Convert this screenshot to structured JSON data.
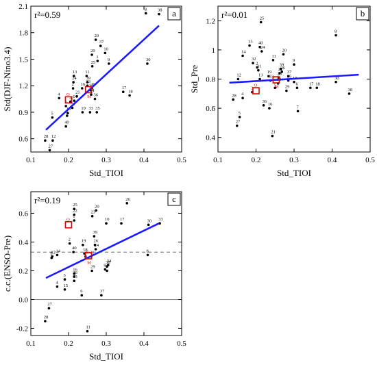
{
  "chart_data": [
    {
      "type": "scatter",
      "panel": "a",
      "r2_text": "r²=0.59",
      "xlabel": "Std_TIOI",
      "ylabel": "Std(DJF-Nino3.4)",
      "xlim": [
        0.1,
        0.5
      ],
      "ylim": [
        0.45,
        2.1
      ],
      "xticks": [
        "0.1",
        "0.2",
        "0.3",
        "0.4",
        "0.5"
      ],
      "yticks": [
        {
          "v": 0.6,
          "label": "0.6"
        },
        {
          "v": 0.9,
          "label": "0.9"
        },
        {
          "v": 1.2,
          "label": "1.2"
        },
        {
          "v": 1.5,
          "label": "1.5"
        },
        {
          "v": 1.8,
          "label": "1.8"
        },
        {
          "v": 2.1,
          "label": "2.1"
        }
      ],
      "fit": {
        "x1": 0.14,
        "y1": 0.7,
        "x2": 0.44,
        "y2": 1.88
      },
      "markers": [
        {
          "label": "O",
          "x": 0.2,
          "y": 1.04
        },
        {
          "label": "M",
          "x": 0.253,
          "y": 1.155
        }
      ],
      "points": [
        {
          "id": "8",
          "x": 0.405,
          "y": 2.02
        },
        {
          "id": "38",
          "x": 0.44,
          "y": 2.01
        },
        {
          "id": "20",
          "x": 0.272,
          "y": 1.72
        },
        {
          "id": "37",
          "x": 0.285,
          "y": 1.65
        },
        {
          "id": "10",
          "x": 0.297,
          "y": 1.57
        },
        {
          "id": "29",
          "x": 0.262,
          "y": 1.55
        },
        {
          "id": "1",
          "x": 0.277,
          "y": 1.48
        },
        {
          "id": "9",
          "x": 0.307,
          "y": 1.45
        },
        {
          "id": "30",
          "x": 0.409,
          "y": 1.45
        },
        {
          "id": "25",
          "x": 0.263,
          "y": 1.42
        },
        {
          "id": "13",
          "x": 0.214,
          "y": 1.31
        },
        {
          "id": "11",
          "x": 0.248,
          "y": 1.31
        },
        {
          "id": "24",
          "x": 0.213,
          "y": 1.24
        },
        {
          "id": "39",
          "x": 0.25,
          "y": 1.24
        },
        {
          "id": "2",
          "x": 0.212,
          "y": 1.17
        },
        {
          "id": "23",
          "x": 0.25,
          "y": 1.2
        },
        {
          "id": "16",
          "x": 0.236,
          "y": 1.17
        },
        {
          "id": "26",
          "x": 0.262,
          "y": 1.17
        },
        {
          "id": "17",
          "x": 0.345,
          "y": 1.13
        },
        {
          "id": "22",
          "x": 0.258,
          "y": 1.15
        },
        {
          "id": "18",
          "x": 0.362,
          "y": 1.09
        },
        {
          "id": "21",
          "x": 0.222,
          "y": 1.08
        },
        {
          "id": "34",
          "x": 0.26,
          "y": 1.1
        },
        {
          "id": "4",
          "x": 0.175,
          "y": 1.06
        },
        {
          "id": "14",
          "x": 0.215,
          "y": 1.03
        },
        {
          "id": "36",
          "x": 0.27,
          "y": 1.05
        },
        {
          "id": "32",
          "x": 0.205,
          "y": 1.02
        },
        {
          "id": "3",
          "x": 0.193,
          "y": 0.97
        },
        {
          "id": "31",
          "x": 0.21,
          "y": 0.95
        },
        {
          "id": "19",
          "x": 0.237,
          "y": 0.9
        },
        {
          "id": "33",
          "x": 0.257,
          "y": 0.9
        },
        {
          "id": "35",
          "x": 0.275,
          "y": 0.9
        },
        {
          "id": "15",
          "x": 0.198,
          "y": 0.89
        },
        {
          "id": "6",
          "x": 0.196,
          "y": 0.86
        },
        {
          "id": "5",
          "x": 0.157,
          "y": 0.84
        },
        {
          "id": "40",
          "x": 0.193,
          "y": 0.74
        },
        {
          "id": "28",
          "x": 0.138,
          "y": 0.58
        },
        {
          "id": "12",
          "x": 0.158,
          "y": 0.58
        },
        {
          "id": "27",
          "x": 0.15,
          "y": 0.47
        }
      ]
    },
    {
      "type": "scatter",
      "panel": "b",
      "r2_text": "r²=0.01",
      "xlabel": "Std_TIOI",
      "ylabel": "Std_Pre",
      "xlim": [
        0.1,
        0.5
      ],
      "ylim": [
        0.3,
        1.3
      ],
      "xticks": [
        "0.1",
        "0.2",
        "0.3",
        "0.4",
        "0.5"
      ],
      "yticks": [
        {
          "v": 0.4,
          "label": "0.4"
        },
        {
          "v": 0.6,
          "label": "0.6"
        },
        {
          "v": 0.8,
          "label": "0.8"
        },
        {
          "v": 1.0,
          "label": "1"
        },
        {
          "v": 1.2,
          "label": "1.2"
        }
      ],
      "fit": {
        "x1": 0.13,
        "y1": 0.775,
        "x2": 0.47,
        "y2": 0.83
      },
      "markers": [
        {
          "label": "O",
          "x": 0.2,
          "y": 0.72
        },
        {
          "label": "M",
          "x": 0.253,
          "y": 0.795
        }
      ],
      "points": [
        {
          "id": "25",
          "x": 0.213,
          "y": 1.19
        },
        {
          "id": "8",
          "x": 0.41,
          "y": 1.1
        },
        {
          "id": "15",
          "x": 0.183,
          "y": 1.03
        },
        {
          "id": "40",
          "x": 0.21,
          "y": 1.02
        },
        {
          "id": "24",
          "x": 0.215,
          "y": 0.99
        },
        {
          "id": "14",
          "x": 0.165,
          "y": 0.96
        },
        {
          "id": "20",
          "x": 0.272,
          "y": 0.97
        },
        {
          "id": "11",
          "x": 0.245,
          "y": 0.93
        },
        {
          "id": "32",
          "x": 0.192,
          "y": 0.91
        },
        {
          "id": "9",
          "x": 0.3,
          "y": 0.9
        },
        {
          "id": "2",
          "x": 0.203,
          "y": 0.88
        },
        {
          "id": "31",
          "x": 0.206,
          "y": 0.86
        },
        {
          "id": "39",
          "x": 0.265,
          "y": 0.87
        },
        {
          "id": "26",
          "x": 0.268,
          "y": 0.85
        },
        {
          "id": "22",
          "x": 0.262,
          "y": 0.84
        },
        {
          "id": "19",
          "x": 0.233,
          "y": 0.82
        },
        {
          "id": "37",
          "x": 0.285,
          "y": 0.82
        },
        {
          "id": "23",
          "x": 0.26,
          "y": 0.81
        },
        {
          "id": "13",
          "x": 0.21,
          "y": 0.8
        },
        {
          "id": "12",
          "x": 0.153,
          "y": 0.8
        },
        {
          "id": "33",
          "x": 0.238,
          "y": 0.79
        },
        {
          "id": "35",
          "x": 0.285,
          "y": 0.79
        },
        {
          "id": "10",
          "x": 0.3,
          "y": 0.78
        },
        {
          "id": "30",
          "x": 0.41,
          "y": 0.78
        },
        {
          "id": "34",
          "x": 0.258,
          "y": 0.77
        },
        {
          "id": "17",
          "x": 0.343,
          "y": 0.74
        },
        {
          "id": "18",
          "x": 0.36,
          "y": 0.74
        },
        {
          "id": "6",
          "x": 0.308,
          "y": 0.74
        },
        {
          "id": "1",
          "x": 0.25,
          "y": 0.74
        },
        {
          "id": "29",
          "x": 0.28,
          "y": 0.72
        },
        {
          "id": "3",
          "x": 0.19,
          "y": 0.71
        },
        {
          "id": "38",
          "x": 0.445,
          "y": 0.7
        },
        {
          "id": "4",
          "x": 0.165,
          "y": 0.67
        },
        {
          "id": "28",
          "x": 0.14,
          "y": 0.66
        },
        {
          "id": "36",
          "x": 0.22,
          "y": 0.62
        },
        {
          "id": "16",
          "x": 0.235,
          "y": 0.6
        },
        {
          "id": "7",
          "x": 0.31,
          "y": 0.58
        },
        {
          "id": "5",
          "x": 0.157,
          "y": 0.54
        },
        {
          "id": "27",
          "x": 0.15,
          "y": 0.48
        },
        {
          "id": "21",
          "x": 0.243,
          "y": 0.41
        }
      ]
    },
    {
      "type": "scatter",
      "panel": "c",
      "r2_text": "r²=0.19",
      "xlabel": "Std_TIOI",
      "ylabel": "c.c.(ENSO-Pre)",
      "xlim": [
        0.1,
        0.5
      ],
      "ylim": [
        -0.25,
        0.75
      ],
      "xticks": [
        "0.1",
        "0.2",
        "0.3",
        "0.4",
        "0.5"
      ],
      "yticks": [
        {
          "v": -0.2,
          "label": "-0.2"
        },
        {
          "v": 0.0,
          "label": "0.0"
        },
        {
          "v": 0.2,
          "label": "0.2"
        },
        {
          "v": 0.4,
          "label": "0.4"
        },
        {
          "v": 0.6,
          "label": "0.6"
        }
      ],
      "zero_line": 0.0,
      "dashed_line": 0.33,
      "fit": {
        "x1": 0.14,
        "y1": 0.15,
        "x2": 0.44,
        "y2": 0.53
      },
      "markers": [
        {
          "label": "O",
          "x": 0.2,
          "y": 0.52
        },
        {
          "label": "M",
          "x": 0.253,
          "y": 0.305
        }
      ],
      "points": [
        {
          "id": "26",
          "x": 0.355,
          "y": 0.67
        },
        {
          "id": "25",
          "x": 0.215,
          "y": 0.63
        },
        {
          "id": "20",
          "x": 0.273,
          "y": 0.62
        },
        {
          "id": "23",
          "x": 0.263,
          "y": 0.58
        },
        {
          "id": "22",
          "x": 0.215,
          "y": 0.59
        },
        {
          "id": "10",
          "x": 0.3,
          "y": 0.53
        },
        {
          "id": "17",
          "x": 0.34,
          "y": 0.53
        },
        {
          "id": "30",
          "x": 0.412,
          "y": 0.52
        },
        {
          "id": "33",
          "x": 0.442,
          "y": 0.53
        },
        {
          "id": "1",
          "x": 0.215,
          "y": 0.55
        },
        {
          "id": "39",
          "x": 0.268,
          "y": 0.44
        },
        {
          "id": "19",
          "x": 0.238,
          "y": 0.38
        },
        {
          "id": "2",
          "x": 0.203,
          "y": 0.39
        },
        {
          "id": "26b",
          "x": 0.27,
          "y": 0.38
        },
        {
          "id": "24",
          "x": 0.272,
          "y": 0.35
        },
        {
          "id": "40",
          "x": 0.213,
          "y": 0.33
        },
        {
          "id": "14",
          "x": 0.17,
          "y": 0.31
        },
        {
          "id": "5",
          "x": 0.155,
          "y": 0.29
        },
        {
          "id": "12",
          "x": 0.157,
          "y": 0.3
        },
        {
          "id": "18",
          "x": 0.242,
          "y": 0.32
        },
        {
          "id": "35",
          "x": 0.245,
          "y": 0.3
        },
        {
          "id": "8",
          "x": 0.41,
          "y": 0.31
        },
        {
          "id": "31",
          "x": 0.26,
          "y": 0.3
        },
        {
          "id": "34",
          "x": 0.305,
          "y": 0.24
        },
        {
          "id": "29",
          "x": 0.262,
          "y": 0.2
        },
        {
          "id": "9",
          "x": 0.297,
          "y": 0.21
        },
        {
          "id": "38",
          "x": 0.302,
          "y": 0.23
        },
        {
          "id": "7",
          "x": 0.302,
          "y": 0.2
        },
        {
          "id": "36",
          "x": 0.215,
          "y": 0.16
        },
        {
          "id": "3",
          "x": 0.19,
          "y": 0.14
        },
        {
          "id": "13",
          "x": 0.215,
          "y": 0.13
        },
        {
          "id": "4",
          "x": 0.17,
          "y": 0.09
        },
        {
          "id": "15",
          "x": 0.19,
          "y": 0.07
        },
        {
          "id": "6",
          "x": 0.235,
          "y": 0.03
        },
        {
          "id": "37",
          "x": 0.287,
          "y": 0.03
        },
        {
          "id": "16",
          "x": 0.215,
          "y": 0.18
        },
        {
          "id": "27",
          "x": 0.148,
          "y": -0.06
        },
        {
          "id": "28",
          "x": 0.138,
          "y": -0.15
        },
        {
          "id": "11",
          "x": 0.25,
          "y": -0.22
        }
      ]
    }
  ]
}
